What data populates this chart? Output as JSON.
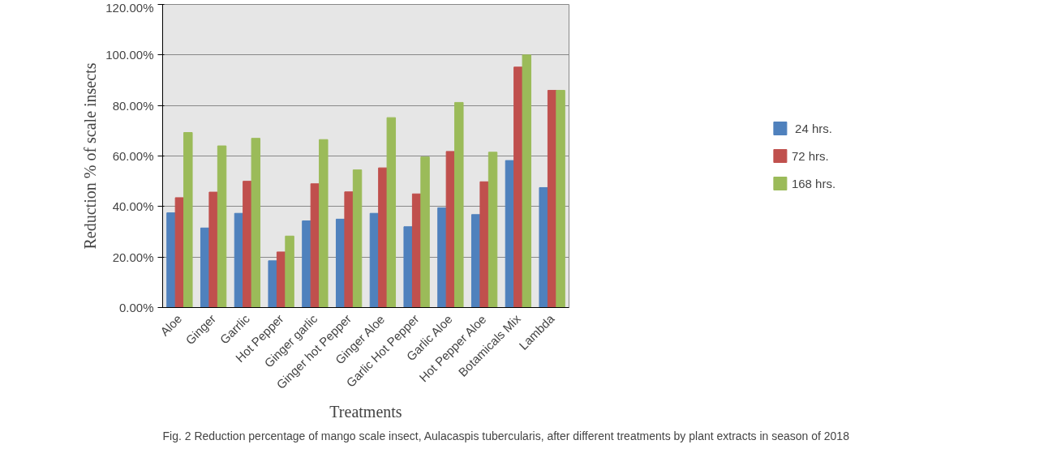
{
  "chart_data": {
    "type": "bar",
    "xlabel": "Treatments",
    "ylabel": "Reduction % of scale insects",
    "categories": [
      "Aloe",
      "Ginger",
      "Garrlic",
      "Hot Pepper",
      "Ginger garlic",
      "Ginger hot Pepper",
      "Ginger Aloe",
      "Garlic Hot Pepper",
      "Garlic Aloe",
      "Hot Pepper Aloe",
      "Botamicals Mix",
      "Lambda"
    ],
    "series": [
      {
        "name": " 24 hrs.",
        "color": "#4f81bd",
        "values": [
          37.5,
          31.5,
          37.3,
          18.5,
          34.3,
          35.0,
          37.3,
          32.0,
          39.5,
          36.8,
          58.2,
          47.5
        ]
      },
      {
        "name": "72 hrs.",
        "color": "#c0504d",
        "values": [
          43.5,
          45.7,
          50.0,
          22.0,
          49.0,
          45.8,
          55.3,
          45.0,
          61.8,
          49.8,
          95.2,
          86.0
        ]
      },
      {
        "name": "168 hrs.",
        "color": "#9bbb59",
        "values": [
          69.3,
          64.0,
          67.0,
          28.3,
          66.5,
          54.5,
          75.2,
          59.6,
          81.2,
          61.5,
          100.0,
          86.0
        ]
      }
    ],
    "ylim": [
      0,
      120
    ],
    "yticks": [
      {
        "value": 0,
        "label": "0.00%"
      },
      {
        "value": 20,
        "label": "20.00%"
      },
      {
        "value": 40,
        "label": "40.00%"
      },
      {
        "value": 60,
        "label": "60.00%"
      },
      {
        "value": 80,
        "label": "80.00%"
      },
      {
        "value": 100,
        "label": "100.00%"
      },
      {
        "value": 120,
        "label": "120.00%"
      }
    ],
    "grid": "y",
    "legend": "right",
    "annotations": [
      "Fig. 2 Reduction percentage of mango scale insect, Aulacaspis tubercularis, after different treatments by plant extracts in season of 2018"
    ]
  }
}
